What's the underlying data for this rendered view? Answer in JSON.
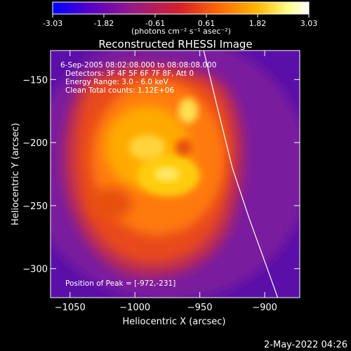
{
  "colorbar": {
    "ticks": [
      "-3.03",
      "-1.82",
      "-0.61",
      "0.61",
      "1.82",
      "3.03"
    ],
    "unit_label": "(photons cm⁻² s⁻¹ asec⁻²)",
    "colors": [
      "#0000ff",
      "#5a00c8",
      "#9a1a80",
      "#d8202a",
      "#ff6a00",
      "#ffb800",
      "#ffff8a",
      "#ffffff"
    ]
  },
  "chart_data": {
    "type": "heatmap",
    "title": "Reconstructed RHESSI Image",
    "xlabel": "Heliocentric X (arcsec)",
    "ylabel": "Heliocentric Y (arcsec)",
    "xlim": [
      -1065,
      -873
    ],
    "ylim": [
      -323,
      -127
    ],
    "x_ticks": [
      -1050,
      -1000,
      -950,
      -900
    ],
    "y_ticks": [
      -150,
      -200,
      -250,
      -300
    ],
    "x_tick_labels": [
      "−1050",
      "−1000",
      "−950",
      "−900"
    ],
    "y_tick_labels": [
      "−150",
      "−200",
      "−250",
      "−300"
    ],
    "annotations": [
      "6-Sep-2005 08:02:08.000 to 08:08:08.000",
      "Detectors: 3F 4F 5F 6F 7F 8F, Att 0",
      "Energy Range: 3.0 - 6.0 keV",
      "Clean    Total counts: 1.12E+06",
      "Position of Peak = [-972,-231]"
    ],
    "peak": {
      "x": -972,
      "y": -231
    },
    "limb_points": [
      [
        -947,
        -127
      ],
      [
        -937,
        -170
      ],
      [
        -925,
        -220
      ],
      [
        -912,
        -260
      ],
      [
        -898,
        -300
      ],
      [
        -890,
        -323
      ]
    ]
  },
  "footer": {
    "date": "2-May-2022 04:26"
  }
}
